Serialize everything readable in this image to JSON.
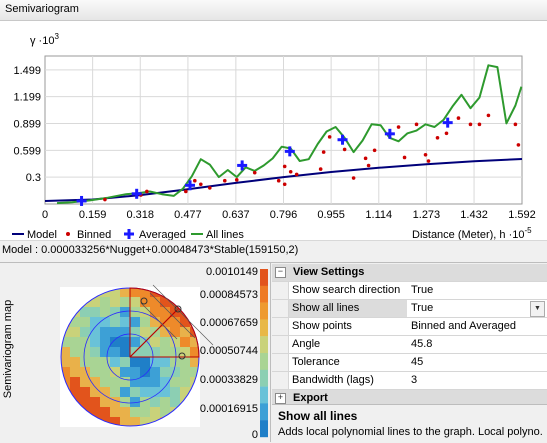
{
  "panel_title": "Semivariogram",
  "model_text": "Model : 0.000033256*Nugget+0.00048473*Stable(159150,2)",
  "map_title": "Semivariogram map",
  "colorbar_labels": [
    "0.0010149",
    "0.00084573",
    "0.00067659",
    "0.00050744",
    "0.00033829",
    "0.00016915",
    "0"
  ],
  "legend": {
    "model": "Model",
    "binned": "Binned",
    "averaged": "Averaged",
    "all_lines": "All lines"
  },
  "property_grid": {
    "categories": {
      "view_settings": "View Settings",
      "export": "Export"
    },
    "rows": [
      {
        "name": "Show search direction",
        "value": "True"
      },
      {
        "name": "Show all lines",
        "value": "True"
      },
      {
        "name": "Show points",
        "value": "Binned and Averaged"
      },
      {
        "name": "Angle",
        "value": "45.8"
      },
      {
        "name": "Tolerance",
        "value": "45"
      },
      {
        "name": "Bandwidth (lags)",
        "value": "3"
      }
    ],
    "help_title": "Show all lines",
    "help_text": "Adds local polynomial lines to the graph. Local polyno..."
  },
  "colors": {
    "model": "#00007a",
    "binned": "#cc0000",
    "averaged": "#1a1aff",
    "lines": "#2e9a2e"
  },
  "chart_data": {
    "type": "scatter",
    "ylabel": "γ ·10",
    "ylabel_exp": "3",
    "xlabel": "Distance (Meter), h ·10",
    "xlabel_exp": "-5",
    "y_ticks": [
      0.3,
      0.599,
      0.899,
      1.199,
      1.499
    ],
    "x_ticks": [
      0,
      0.159,
      0.318,
      0.477,
      0.637,
      0.796,
      0.955,
      1.114,
      1.273,
      1.432,
      1.592
    ],
    "y_tick_labels": [
      "0.3",
      "0.599",
      "0.899",
      "1.199",
      "1.499"
    ],
    "x_tick_labels": [
      "0",
      "0.159",
      "0.318",
      "0.477",
      "0.637",
      "0.796",
      "0.955",
      "1.114",
      "1.273",
      "1.432",
      "1.592"
    ],
    "xlim": [
      0,
      1.592
    ],
    "ylim": [
      0,
      1.62
    ],
    "grid": true,
    "series": [
      {
        "name": "Model",
        "type": "line",
        "points": [
          [
            0,
            0.033
          ],
          [
            0.159,
            0.05
          ],
          [
            0.318,
            0.099
          ],
          [
            0.477,
            0.165
          ],
          [
            0.637,
            0.236
          ],
          [
            0.796,
            0.3
          ],
          [
            0.955,
            0.357
          ],
          [
            1.114,
            0.405
          ],
          [
            1.273,
            0.445
          ],
          [
            1.432,
            0.477
          ],
          [
            1.592,
            0.503
          ]
        ]
      },
      {
        "name": "Binned",
        "type": "scatter",
        "points": [
          [
            0.2,
            0.05
          ],
          [
            0.32,
            0.1
          ],
          [
            0.34,
            0.14
          ],
          [
            0.47,
            0.14
          ],
          [
            0.5,
            0.26
          ],
          [
            0.52,
            0.22
          ],
          [
            0.55,
            0.18
          ],
          [
            0.6,
            0.26
          ],
          [
            0.64,
            0.27
          ],
          [
            0.7,
            0.35
          ],
          [
            0.78,
            0.26
          ],
          [
            0.8,
            0.22
          ],
          [
            0.8,
            0.42
          ],
          [
            0.82,
            0.36
          ],
          [
            0.84,
            0.33
          ],
          [
            0.92,
            0.39
          ],
          [
            0.93,
            0.58
          ],
          [
            0.95,
            0.75
          ],
          [
            1.0,
            0.61
          ],
          [
            1.03,
            0.29
          ],
          [
            1.07,
            0.51
          ],
          [
            1.08,
            0.43
          ],
          [
            1.1,
            0.6
          ],
          [
            1.18,
            0.86
          ],
          [
            1.2,
            0.52
          ],
          [
            1.24,
            0.89
          ],
          [
            1.27,
            0.55
          ],
          [
            1.28,
            0.48
          ],
          [
            1.31,
            0.74
          ],
          [
            1.34,
            0.79
          ],
          [
            1.38,
            0.96
          ],
          [
            1.42,
            0.89
          ],
          [
            1.45,
            0.89
          ],
          [
            1.48,
            0.99
          ],
          [
            1.57,
            0.89
          ],
          [
            1.58,
            0.66
          ]
        ]
      },
      {
        "name": "Averaged",
        "type": "scatter",
        "points": [
          [
            0.122,
            0.034
          ],
          [
            0.306,
            0.114
          ],
          [
            0.484,
            0.209
          ],
          [
            0.658,
            0.431
          ],
          [
            0.817,
            0.588
          ],
          [
            0.993,
            0.718
          ],
          [
            1.151,
            0.784
          ],
          [
            1.344,
            0.909
          ]
        ]
      },
      {
        "name": "All lines",
        "type": "line",
        "points": [
          [
            0.04,
            0.01
          ],
          [
            0.09,
            0.02
          ],
          [
            0.15,
            0.04
          ],
          [
            0.21,
            0.07
          ],
          [
            0.27,
            0.11
          ],
          [
            0.31,
            0.12
          ],
          [
            0.35,
            0.14
          ],
          [
            0.39,
            0.11
          ],
          [
            0.43,
            0.09
          ],
          [
            0.46,
            0.17
          ],
          [
            0.49,
            0.31
          ],
          [
            0.52,
            0.5
          ],
          [
            0.55,
            0.44
          ],
          [
            0.58,
            0.3
          ],
          [
            0.61,
            0.38
          ],
          [
            0.64,
            0.3
          ],
          [
            0.67,
            0.41
          ],
          [
            0.7,
            0.37
          ],
          [
            0.73,
            0.43
          ],
          [
            0.76,
            0.51
          ],
          [
            0.79,
            0.64
          ],
          [
            0.82,
            0.62
          ],
          [
            0.85,
            0.48
          ],
          [
            0.88,
            0.5
          ],
          [
            0.91,
            0.67
          ],
          [
            0.94,
            0.81
          ],
          [
            0.97,
            0.86
          ],
          [
            1.0,
            0.74
          ],
          [
            1.03,
            0.58
          ],
          [
            1.06,
            0.71
          ],
          [
            1.09,
            0.89
          ],
          [
            1.12,
            0.88
          ],
          [
            1.15,
            0.74
          ],
          [
            1.18,
            0.7
          ],
          [
            1.21,
            0.79
          ],
          [
            1.24,
            0.82
          ],
          [
            1.27,
            0.89
          ],
          [
            1.3,
            0.86
          ],
          [
            1.33,
            0.94
          ],
          [
            1.36,
            1.09
          ],
          [
            1.39,
            1.22
          ],
          [
            1.42,
            1.07
          ],
          [
            1.45,
            1.19
          ],
          [
            1.48,
            1.55
          ],
          [
            1.51,
            1.53
          ],
          [
            1.54,
            0.9
          ],
          [
            1.57,
            1.1
          ],
          [
            1.59,
            1.31
          ]
        ]
      }
    ]
  }
}
